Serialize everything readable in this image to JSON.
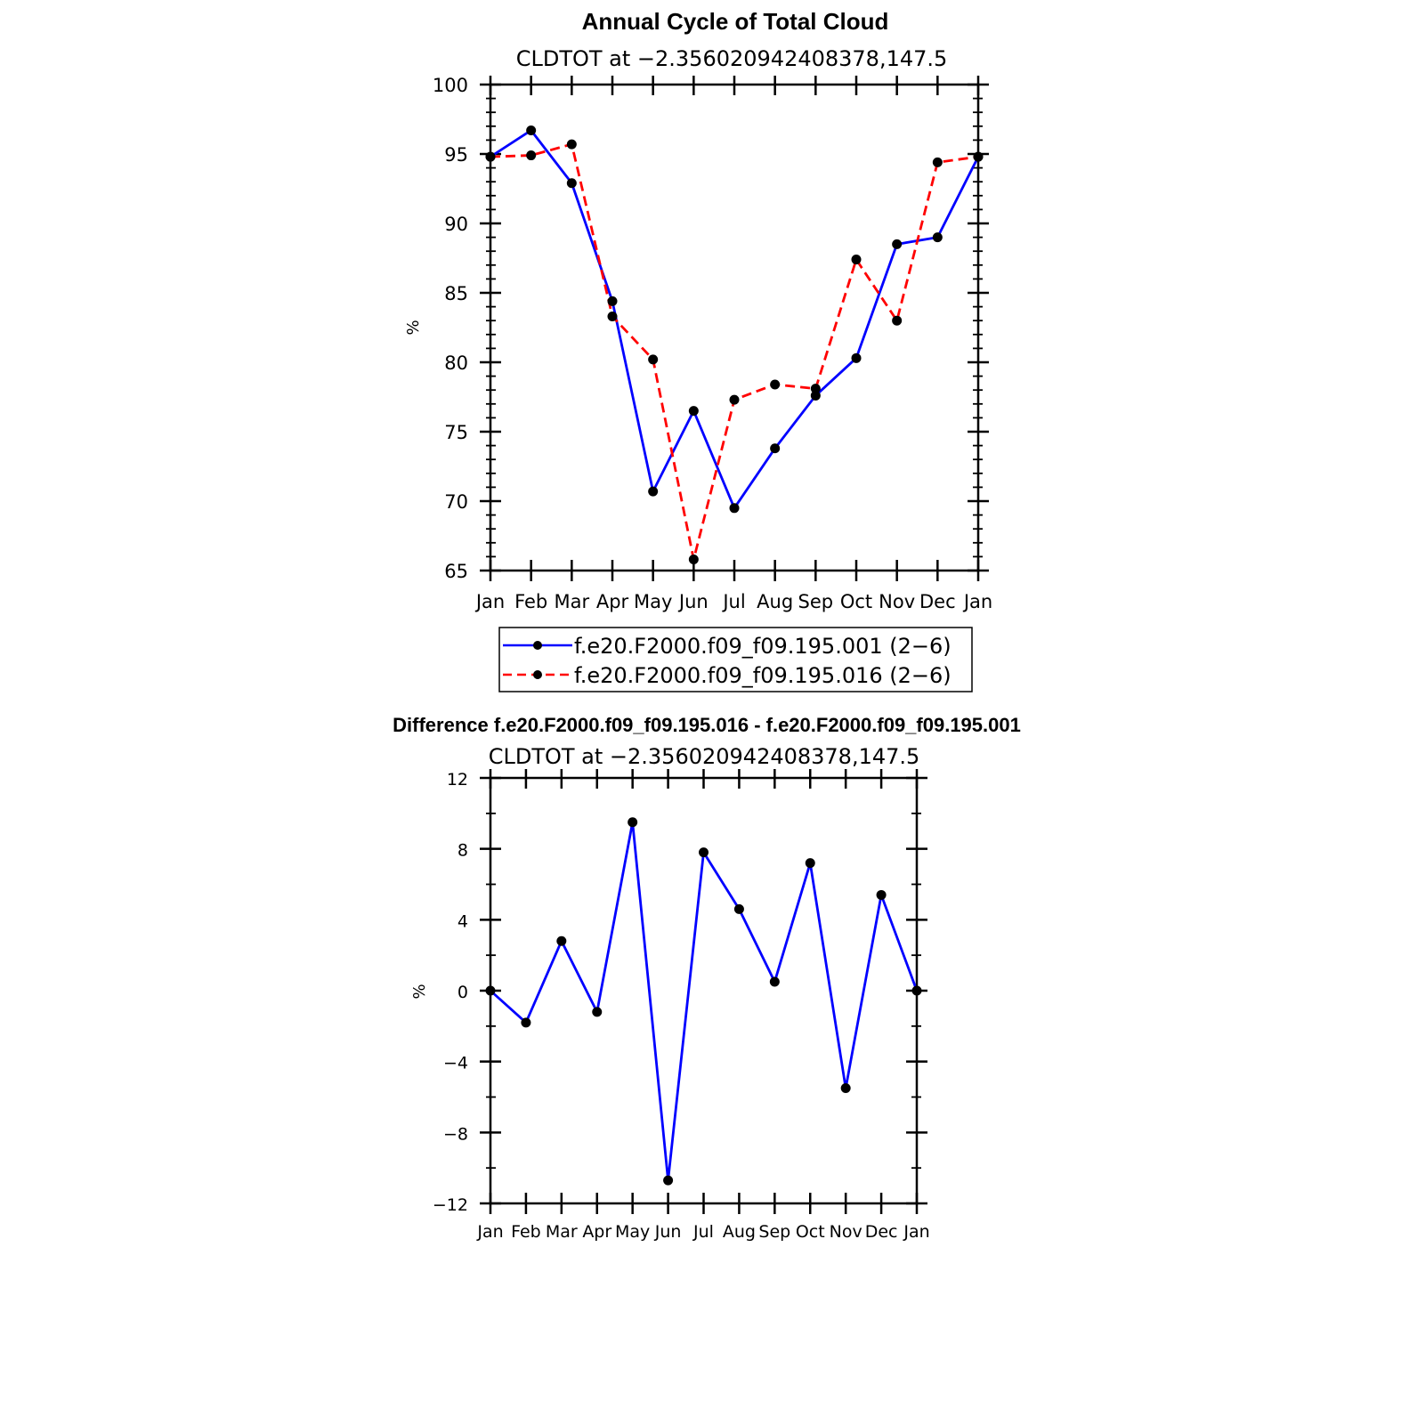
{
  "chart_data": [
    {
      "type": "line",
      "title": "Annual Cycle of Total Cloud",
      "subtitle": "CLDTOT at −2.356020942408378,147.5",
      "xlabel": "",
      "ylabel": "%",
      "categories": [
        "Jan",
        "Feb",
        "Mar",
        "Apr",
        "May",
        "Jun",
        "Jul",
        "Aug",
        "Sep",
        "Oct",
        "Nov",
        "Dec",
        "Jan"
      ],
      "ylim": [
        65,
        100
      ],
      "yticks": [
        65,
        70,
        75,
        80,
        85,
        90,
        95,
        100
      ],
      "ytick_labels": [
        "65",
        "70",
        "75",
        "80",
        "85",
        "90",
        "95",
        "100"
      ],
      "legend_position": "bottom",
      "series": [
        {
          "name": "f.e20.F2000.f09_f09.195.001 (2−6)",
          "color": "#0000ff",
          "dash": "solid",
          "values": [
            94.8,
            96.7,
            92.9,
            84.4,
            70.7,
            76.5,
            69.5,
            73.8,
            77.6,
            80.3,
            88.5,
            89.0,
            94.8
          ]
        },
        {
          "name": "f.e20.F2000.f09_f09.195.016 (2−6)",
          "color": "#ff0000",
          "dash": "dashed",
          "values": [
            94.8,
            94.9,
            95.7,
            83.3,
            80.2,
            65.8,
            77.3,
            78.4,
            78.1,
            87.4,
            83.0,
            94.4,
            94.8
          ]
        }
      ]
    },
    {
      "type": "line",
      "title": "Difference f.e20.F2000.f09_f09.195.016 - f.e20.F2000.f09_f09.195.001",
      "subtitle": "CLDTOT at −2.356020942408378,147.5",
      "xlabel": "",
      "ylabel": "%",
      "categories": [
        "Jan",
        "Feb",
        "Mar",
        "Apr",
        "May",
        "Jun",
        "Jul",
        "Aug",
        "Sep",
        "Oct",
        "Nov",
        "Dec",
        "Jan"
      ],
      "ylim": [
        -12,
        12
      ],
      "yticks": [
        -12,
        -8,
        -4,
        0,
        4,
        8,
        12
      ],
      "ytick_labels": [
        "−12",
        "−8",
        "−4",
        "0",
        "4",
        "8",
        "12"
      ],
      "series": [
        {
          "name": "Difference",
          "color": "#0000ff",
          "dash": "solid",
          "values": [
            0,
            -1.8,
            2.8,
            -1.2,
            9.5,
            -10.7,
            7.8,
            4.6,
            0.5,
            7.2,
            -5.5,
            5.4,
            0
          ]
        }
      ]
    }
  ]
}
